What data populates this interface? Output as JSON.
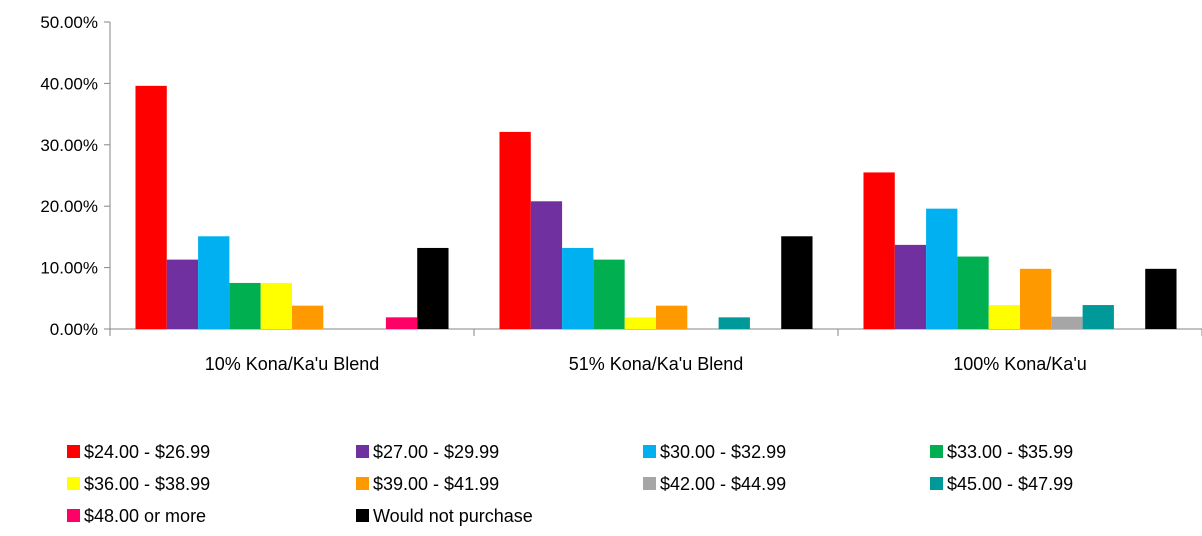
{
  "chart_data": {
    "type": "bar",
    "categories": [
      "10% Kona/Ka'u Blend",
      "51% Kona/Ka'u Blend",
      "100% Kona/Ka'u"
    ],
    "ylim": [
      0,
      50
    ],
    "yticks": [
      0,
      10,
      20,
      30,
      40,
      50
    ],
    "ytick_labels": [
      "0.00%",
      "10.00%",
      "20.00%",
      "30.00%",
      "40.00%",
      "50.00%"
    ],
    "grid": false,
    "legend_position": "bottom",
    "series": [
      {
        "name": "$24.00 - $26.99",
        "color": "#FF0000",
        "values": [
          39.6,
          32.1,
          25.5
        ]
      },
      {
        "name": "$27.00 - $29.99",
        "color": "#7030A0",
        "values": [
          11.3,
          20.8,
          13.7
        ]
      },
      {
        "name": "$30.00 - $32.99",
        "color": "#00B0F0",
        "values": [
          15.1,
          13.2,
          19.6
        ]
      },
      {
        "name": "$33.00 - $35.99",
        "color": "#00B050",
        "values": [
          7.5,
          11.3,
          11.8
        ]
      },
      {
        "name": "$36.00 - $38.99",
        "color": "#FFFF00",
        "values": [
          7.5,
          1.9,
          3.9
        ]
      },
      {
        "name": "$39.00 - $41.99",
        "color": "#FF9900",
        "values": [
          3.8,
          3.8,
          9.8
        ]
      },
      {
        "name": "$42.00 - $44.99",
        "color": "#A6A6A6",
        "values": [
          0,
          0,
          2.0
        ]
      },
      {
        "name": "$45.00 - $47.99",
        "color": "#009999",
        "values": [
          0,
          1.9,
          3.9
        ]
      },
      {
        "name": "$48.00 or more",
        "color": "#FF0066",
        "values": [
          1.9,
          0,
          0
        ]
      },
      {
        "name": "Would not purchase",
        "color": "#000000",
        "values": [
          13.2,
          15.1,
          9.8
        ]
      }
    ]
  }
}
